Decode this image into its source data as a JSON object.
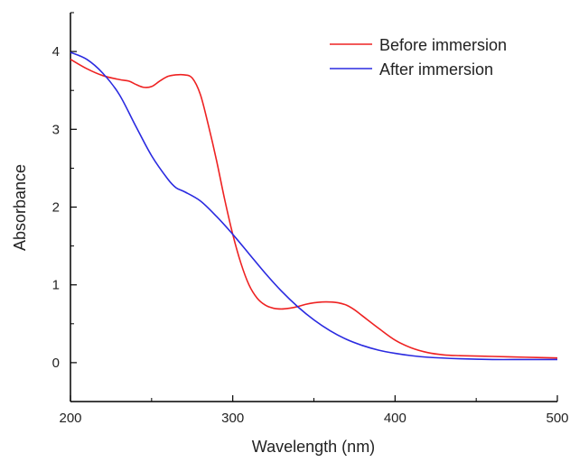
{
  "chart_data": {
    "type": "line",
    "title": "",
    "xlabel": "Wavelength (nm)",
    "ylabel": "Absorbance",
    "xlim": [
      200,
      500
    ],
    "ylim": [
      -0.5,
      4.5
    ],
    "x_ticks": [
      200,
      300,
      400,
      500
    ],
    "y_ticks": [
      0,
      1,
      2,
      3,
      4
    ],
    "x_tick_labels": [
      "200",
      "300",
      "400",
      "500"
    ],
    "y_tick_labels": [
      "0",
      "1",
      "2",
      "3",
      "4"
    ],
    "grid": false,
    "legend_position": "top-right",
    "series": [
      {
        "name": "Before immersion",
        "color": "#ee2222",
        "x": [
          200,
          210,
          220,
          230,
          236,
          240,
          245,
          250,
          255,
          260,
          265,
          270,
          275,
          280,
          285,
          290,
          295,
          300,
          305,
          310,
          315,
          320,
          325,
          330,
          335,
          340,
          345,
          350,
          355,
          360,
          365,
          370,
          375,
          380,
          390,
          400,
          410,
          420,
          430,
          440,
          460,
          480,
          500
        ],
        "y": [
          3.9,
          3.78,
          3.69,
          3.64,
          3.62,
          3.58,
          3.54,
          3.55,
          3.62,
          3.68,
          3.7,
          3.7,
          3.66,
          3.45,
          3.05,
          2.6,
          2.1,
          1.65,
          1.28,
          1.0,
          0.83,
          0.74,
          0.7,
          0.69,
          0.7,
          0.72,
          0.75,
          0.77,
          0.78,
          0.78,
          0.77,
          0.74,
          0.68,
          0.6,
          0.44,
          0.29,
          0.19,
          0.13,
          0.1,
          0.09,
          0.08,
          0.07,
          0.06
        ]
      },
      {
        "name": "After immersion",
        "color": "#2a2ae0",
        "x": [
          200,
          210,
          220,
          230,
          240,
          250,
          260,
          265,
          270,
          280,
          290,
          300,
          310,
          320,
          330,
          340,
          350,
          360,
          370,
          380,
          390,
          400,
          410,
          420,
          440,
          460,
          480,
          500
        ],
        "y": [
          3.99,
          3.9,
          3.72,
          3.45,
          3.05,
          2.66,
          2.36,
          2.25,
          2.2,
          2.08,
          1.88,
          1.65,
          1.4,
          1.15,
          0.92,
          0.72,
          0.55,
          0.41,
          0.3,
          0.22,
          0.16,
          0.12,
          0.09,
          0.07,
          0.05,
          0.04,
          0.04,
          0.04
        ]
      }
    ]
  }
}
